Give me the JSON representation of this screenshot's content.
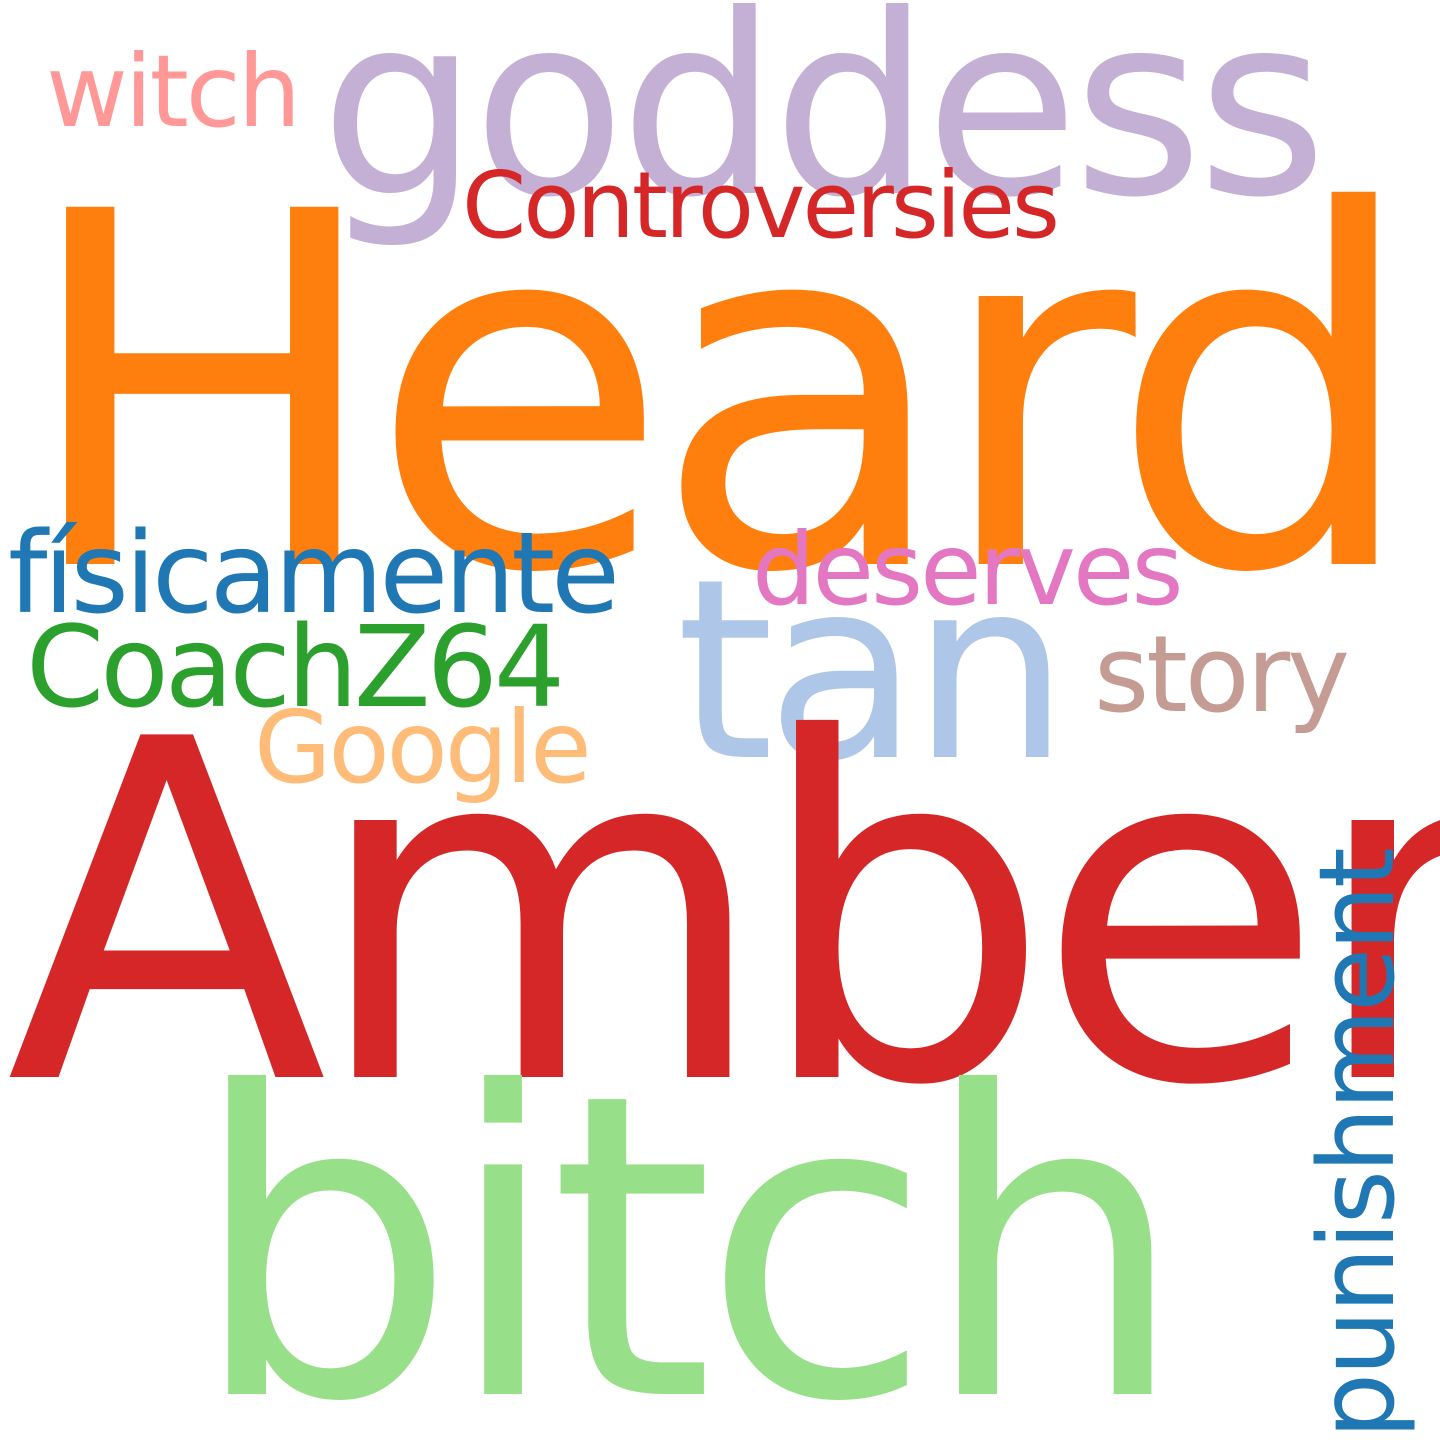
{
  "words": [
    {
      "text": "Heard",
      "color": "#ff7f0e"
    },
    {
      "text": "goddess",
      "color": "#c5b0d5"
    },
    {
      "text": "witch",
      "color": "#ff9896"
    },
    {
      "text": "Controversies",
      "color": "#d62728"
    },
    {
      "text": "físicamente",
      "color": "#1f77b4"
    },
    {
      "text": "deserves",
      "color": "#e377c2"
    },
    {
      "text": "CoachZ64",
      "color": "#2ca02c"
    },
    {
      "text": "tan",
      "color": "#aec7e8"
    },
    {
      "text": "story",
      "color": "#c49c94"
    },
    {
      "text": "Google",
      "color": "#ffbb78"
    },
    {
      "text": "Amber",
      "color": "#d62728"
    },
    {
      "text": "bitch",
      "color": "#98df8a"
    },
    {
      "text": "punishment",
      "color": "#1f77b4"
    }
  ]
}
